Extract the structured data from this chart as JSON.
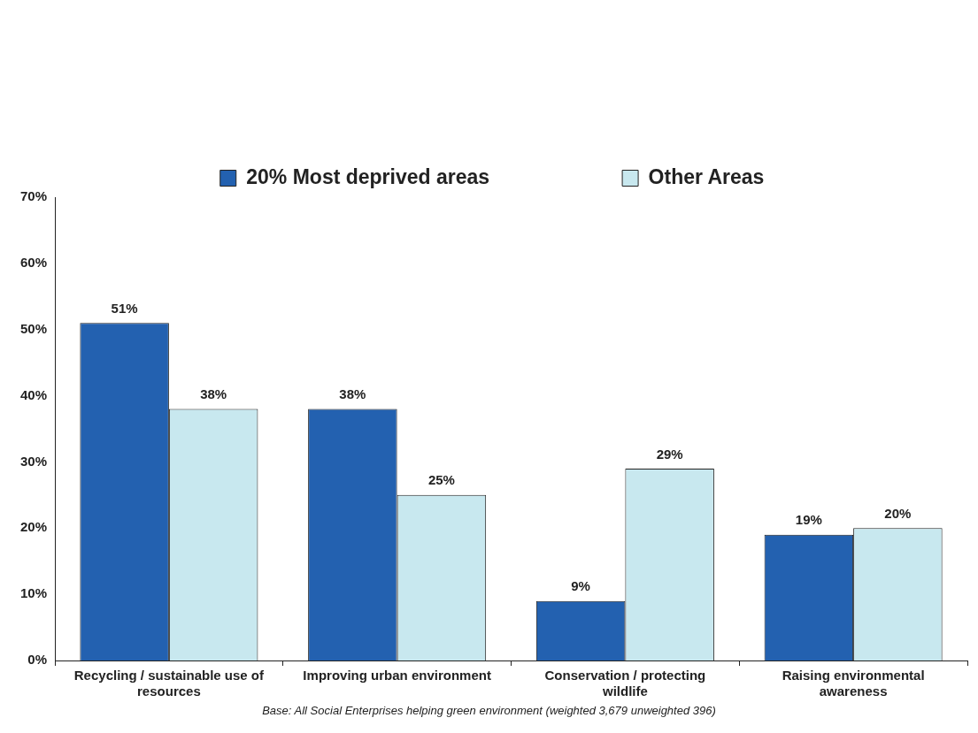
{
  "chart_data": {
    "type": "bar",
    "categories": [
      "Recycling / sustainable use of resources",
      "Improving urban environment",
      "Conservation / protecting wildlife",
      "Raising environmental awareness"
    ],
    "series": [
      {
        "name": "20% Most deprived areas",
        "color": "#2361b0",
        "values": [
          51,
          38,
          9,
          19
        ]
      },
      {
        "name": "Other Areas",
        "color": "#c8e8ef",
        "values": [
          38,
          25,
          29,
          20
        ]
      }
    ],
    "ylim": [
      0,
      70
    ],
    "yticks": [
      {
        "value": 0,
        "label": "0%"
      },
      {
        "value": 10,
        "label": "10%"
      },
      {
        "value": 20,
        "label": "20%"
      },
      {
        "value": 30,
        "label": "30%"
      },
      {
        "value": 40,
        "label": "40%"
      },
      {
        "value": 50,
        "label": "50%"
      },
      {
        "value": 60,
        "label": "60%"
      },
      {
        "value": 70,
        "label": "70%"
      }
    ],
    "value_labels": [
      [
        "51%",
        "38%",
        "9%",
        "19%"
      ],
      [
        "38%",
        "25%",
        "29%",
        "20%"
      ]
    ],
    "grid": false,
    "legend": "top",
    "annotations": [
      "Base: All Social Enterprises helping green environment (weighted 3,679  unweighted 396)"
    ]
  }
}
